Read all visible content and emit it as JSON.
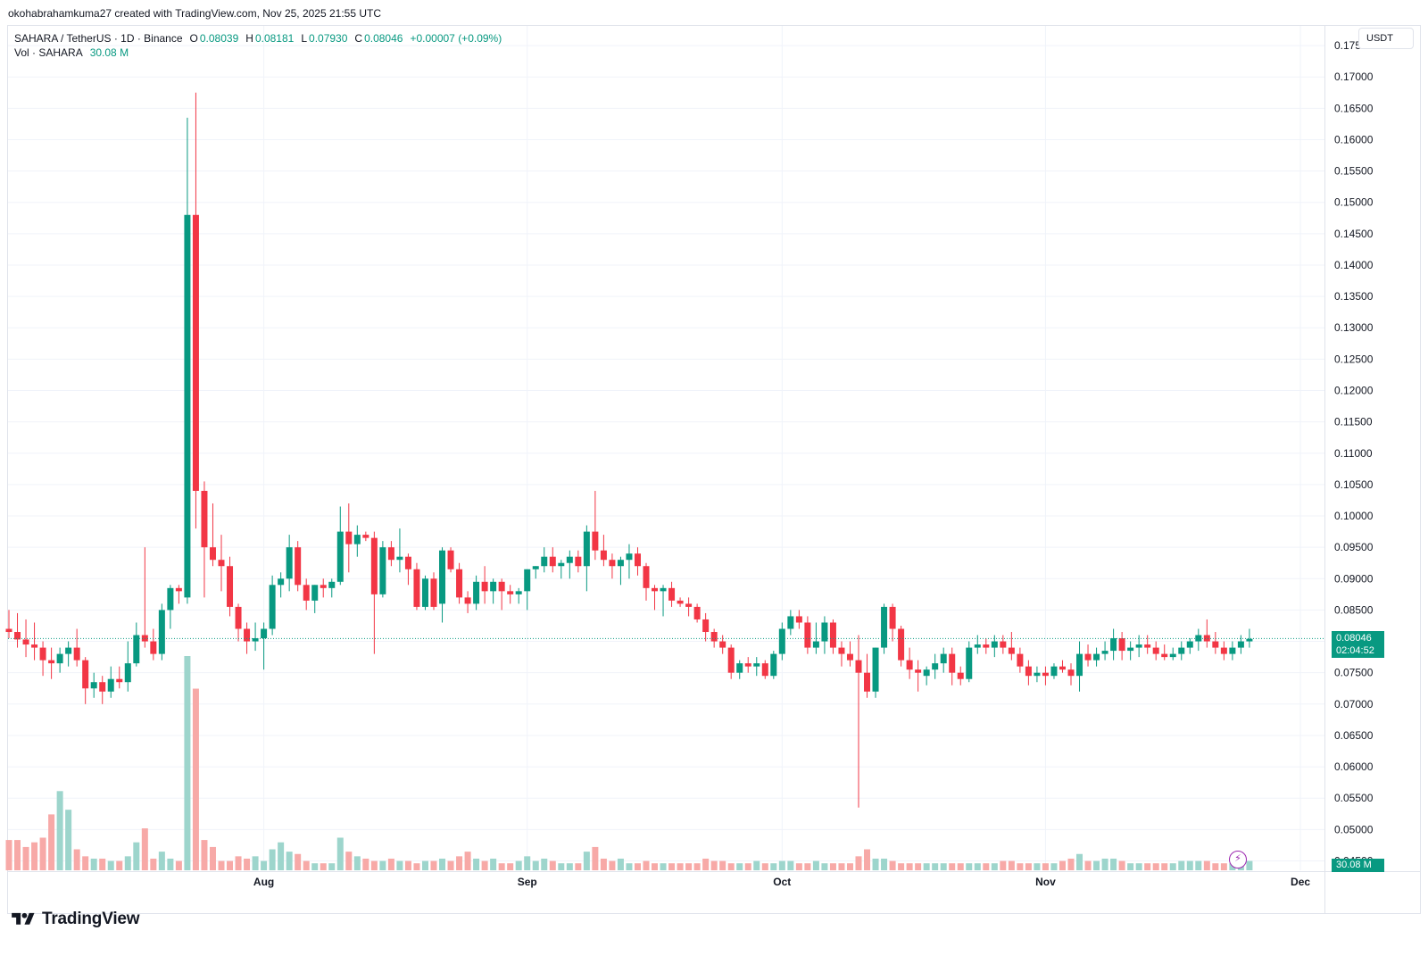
{
  "attribution": "okohabrahamkuma27 created with TradingView.com, Nov 25, 2025 21:55 UTC",
  "legend": {
    "symbol": "SAHARA / TetherUS · 1D · Binance",
    "open_label": "O",
    "open": "0.08039",
    "high_label": "H",
    "high": "0.08181",
    "low_label": "L",
    "low": "0.07930",
    "close_label": "C",
    "close": "0.08046",
    "change": "+0.00007 (+0.09%)",
    "vol_label": "Vol · SAHARA",
    "vol_value": "30.08 M"
  },
  "currency": "USDT",
  "last_price_tag": {
    "price": "0.08046",
    "countdown": "02:04:52"
  },
  "volume_tag": "30.08 M",
  "icons": {
    "flash": "lightning-bolt-icon",
    "brand": "tradingview-logo-icon"
  },
  "brand": "TradingView",
  "colors": {
    "up": "#089981",
    "down": "#f23645",
    "up_volume": "#9dd5cc",
    "down_volume": "#f7a9a7",
    "grid": "#f0f3fa",
    "axis_text": "#131722"
  },
  "chart_data": {
    "type": "candlestick",
    "symbol": "SAHARA / TetherUS",
    "timeframe": "1D",
    "exchange": "Binance",
    "quote_currency": "USDT",
    "ylim": [
      0.0435,
      0.178
    ],
    "y_ticks": [
      "0.17500",
      "0.17000",
      "0.16500",
      "0.16000",
      "0.15500",
      "0.15000",
      "0.14500",
      "0.14000",
      "0.13500",
      "0.13000",
      "0.12500",
      "0.12000",
      "0.11500",
      "0.11000",
      "0.10500",
      "0.10000",
      "0.09500",
      "0.09000",
      "0.08500",
      "0.08000",
      "0.07500",
      "0.07000",
      "0.06500",
      "0.06000",
      "0.05500",
      "0.05000",
      "0.04500"
    ],
    "x_ticks": [
      {
        "label": "Aug",
        "index": 30
      },
      {
        "label": "Sep",
        "index": 61
      },
      {
        "label": "Oct",
        "index": 91
      },
      {
        "label": "Nov",
        "index": 122
      },
      {
        "label": "Dec",
        "index": 152
      }
    ],
    "grid": true,
    "candles_ohlcv": [
      [
        0.082,
        0.085,
        0.0805,
        0.0815,
        13
      ],
      [
        0.0815,
        0.0845,
        0.079,
        0.0803,
        13
      ],
      [
        0.0803,
        0.0835,
        0.0775,
        0.0795,
        10
      ],
      [
        0.0795,
        0.083,
        0.077,
        0.079,
        12
      ],
      [
        0.079,
        0.08,
        0.0745,
        0.077,
        14
      ],
      [
        0.077,
        0.079,
        0.074,
        0.0765,
        24
      ],
      [
        0.0765,
        0.079,
        0.075,
        0.078,
        34
      ],
      [
        0.078,
        0.08,
        0.076,
        0.079,
        26
      ],
      [
        0.079,
        0.082,
        0.076,
        0.077,
        9
      ],
      [
        0.077,
        0.0775,
        0.07,
        0.0725,
        6
      ],
      [
        0.0725,
        0.075,
        0.071,
        0.0735,
        5
      ],
      [
        0.0735,
        0.0745,
        0.07,
        0.072,
        5
      ],
      [
        0.072,
        0.076,
        0.071,
        0.074,
        4
      ],
      [
        0.074,
        0.076,
        0.0725,
        0.0735,
        4
      ],
      [
        0.0735,
        0.08,
        0.072,
        0.0765,
        6
      ],
      [
        0.0765,
        0.083,
        0.076,
        0.081,
        12
      ],
      [
        0.081,
        0.095,
        0.079,
        0.08,
        18
      ],
      [
        0.08,
        0.082,
        0.077,
        0.078,
        5
      ],
      [
        0.078,
        0.086,
        0.077,
        0.085,
        8
      ],
      [
        0.085,
        0.089,
        0.082,
        0.0885,
        5
      ],
      [
        0.0885,
        0.089,
        0.086,
        0.088,
        4
      ],
      [
        0.087,
        0.1635,
        0.086,
        0.148,
        92
      ],
      [
        0.148,
        0.1675,
        0.098,
        0.104,
        78
      ],
      [
        0.104,
        0.1055,
        0.087,
        0.095,
        13
      ],
      [
        0.095,
        0.102,
        0.092,
        0.093,
        10
      ],
      [
        0.093,
        0.097,
        0.088,
        0.092,
        4
      ],
      [
        0.092,
        0.0935,
        0.084,
        0.0855,
        4
      ],
      [
        0.0855,
        0.086,
        0.08,
        0.082,
        6
      ],
      [
        0.082,
        0.083,
        0.078,
        0.08,
        5
      ],
      [
        0.08,
        0.083,
        0.0785,
        0.0805,
        6
      ],
      [
        0.0805,
        0.083,
        0.0755,
        0.082,
        4
      ],
      [
        0.082,
        0.0905,
        0.081,
        0.089,
        9
      ],
      [
        0.089,
        0.091,
        0.087,
        0.09,
        12
      ],
      [
        0.09,
        0.097,
        0.088,
        0.095,
        8
      ],
      [
        0.095,
        0.096,
        0.088,
        0.089,
        7
      ],
      [
        0.089,
        0.09,
        0.085,
        0.0865,
        4
      ],
      [
        0.0865,
        0.089,
        0.0845,
        0.089,
        3
      ],
      [
        0.089,
        0.09,
        0.087,
        0.0885,
        3
      ],
      [
        0.0885,
        0.09,
        0.087,
        0.0895,
        3
      ],
      [
        0.0895,
        0.1015,
        0.089,
        0.0975,
        14
      ],
      [
        0.0975,
        0.102,
        0.091,
        0.0955,
        8
      ],
      [
        0.0955,
        0.0985,
        0.0935,
        0.097,
        6
      ],
      [
        0.097,
        0.0975,
        0.096,
        0.0965,
        5
      ],
      [
        0.0965,
        0.0975,
        0.078,
        0.0875,
        4
      ],
      [
        0.0875,
        0.096,
        0.087,
        0.095,
        4
      ],
      [
        0.095,
        0.096,
        0.092,
        0.093,
        5
      ],
      [
        0.093,
        0.098,
        0.091,
        0.0935,
        4
      ],
      [
        0.0935,
        0.094,
        0.089,
        0.0915,
        4
      ],
      [
        0.0915,
        0.0925,
        0.085,
        0.0855,
        3
      ],
      [
        0.0855,
        0.0905,
        0.085,
        0.09,
        4
      ],
      [
        0.09,
        0.091,
        0.085,
        0.0855,
        4
      ],
      [
        0.086,
        0.095,
        0.083,
        0.0945,
        5
      ],
      [
        0.0945,
        0.095,
        0.091,
        0.0915,
        4
      ],
      [
        0.0915,
        0.0925,
        0.086,
        0.087,
        6
      ],
      [
        0.087,
        0.088,
        0.0845,
        0.086,
        8
      ],
      [
        0.086,
        0.0905,
        0.085,
        0.0895,
        5
      ],
      [
        0.0895,
        0.092,
        0.086,
        0.088,
        4
      ],
      [
        0.088,
        0.09,
        0.086,
        0.0895,
        5
      ],
      [
        0.0895,
        0.09,
        0.085,
        0.088,
        3
      ],
      [
        0.088,
        0.089,
        0.086,
        0.0875,
        3
      ],
      [
        0.0875,
        0.0885,
        0.086,
        0.088,
        4
      ],
      [
        0.088,
        0.0915,
        0.085,
        0.0915,
        6
      ],
      [
        0.0915,
        0.092,
        0.09,
        0.092,
        4
      ],
      [
        0.092,
        0.095,
        0.091,
        0.0935,
        5
      ],
      [
        0.0935,
        0.095,
        0.091,
        0.092,
        4
      ],
      [
        0.092,
        0.093,
        0.09,
        0.0925,
        3
      ],
      [
        0.0925,
        0.0945,
        0.09,
        0.0935,
        3
      ],
      [
        0.0935,
        0.0945,
        0.091,
        0.092,
        3
      ],
      [
        0.092,
        0.0985,
        0.088,
        0.0975,
        8
      ],
      [
        0.0975,
        0.104,
        0.093,
        0.0945,
        10
      ],
      [
        0.0945,
        0.097,
        0.092,
        0.093,
        5
      ],
      [
        0.093,
        0.094,
        0.09,
        0.092,
        4
      ],
      [
        0.092,
        0.0935,
        0.089,
        0.093,
        5
      ],
      [
        0.093,
        0.0955,
        0.09,
        0.094,
        3
      ],
      [
        0.094,
        0.095,
        0.0905,
        0.092,
        3
      ],
      [
        0.092,
        0.0925,
        0.0865,
        0.0885,
        4
      ],
      [
        0.0885,
        0.089,
        0.085,
        0.088,
        3
      ],
      [
        0.088,
        0.089,
        0.084,
        0.0885,
        3
      ],
      [
        0.0885,
        0.0895,
        0.0855,
        0.0865,
        3
      ],
      [
        0.0865,
        0.087,
        0.0855,
        0.086,
        3
      ],
      [
        0.086,
        0.087,
        0.084,
        0.0855,
        3
      ],
      [
        0.0855,
        0.086,
        0.083,
        0.0835,
        3
      ],
      [
        0.0835,
        0.0845,
        0.08,
        0.0815,
        5
      ],
      [
        0.0815,
        0.082,
        0.079,
        0.08,
        4
      ],
      [
        0.08,
        0.081,
        0.078,
        0.079,
        4
      ],
      [
        0.079,
        0.0795,
        0.074,
        0.075,
        3
      ],
      [
        0.075,
        0.077,
        0.074,
        0.0765,
        3
      ],
      [
        0.0765,
        0.0775,
        0.075,
        0.076,
        3
      ],
      [
        0.076,
        0.0775,
        0.0745,
        0.0765,
        4
      ],
      [
        0.0765,
        0.077,
        0.074,
        0.0745,
        3
      ],
      [
        0.0745,
        0.0785,
        0.074,
        0.078,
        3
      ],
      [
        0.078,
        0.083,
        0.077,
        0.082,
        4
      ],
      [
        0.082,
        0.085,
        0.081,
        0.084,
        4
      ],
      [
        0.084,
        0.085,
        0.082,
        0.083,
        3
      ],
      [
        0.083,
        0.084,
        0.078,
        0.079,
        3
      ],
      [
        0.079,
        0.083,
        0.078,
        0.08,
        4
      ],
      [
        0.08,
        0.084,
        0.078,
        0.083,
        3
      ],
      [
        0.083,
        0.0835,
        0.078,
        0.079,
        3
      ],
      [
        0.079,
        0.08,
        0.076,
        0.078,
        3
      ],
      [
        0.078,
        0.08,
        0.076,
        0.077,
        3
      ],
      [
        0.077,
        0.081,
        0.0535,
        0.075,
        6
      ],
      [
        0.075,
        0.078,
        0.071,
        0.072,
        9
      ],
      [
        0.072,
        0.079,
        0.071,
        0.079,
        5
      ],
      [
        0.079,
        0.086,
        0.078,
        0.0855,
        5
      ],
      [
        0.0855,
        0.086,
        0.08,
        0.082,
        4
      ],
      [
        0.082,
        0.0825,
        0.076,
        0.077,
        3
      ],
      [
        0.077,
        0.079,
        0.074,
        0.0755,
        3
      ],
      [
        0.0755,
        0.077,
        0.072,
        0.075,
        3
      ],
      [
        0.0745,
        0.076,
        0.073,
        0.0755,
        3
      ],
      [
        0.0755,
        0.078,
        0.074,
        0.0765,
        3
      ],
      [
        0.0765,
        0.079,
        0.075,
        0.078,
        3
      ],
      [
        0.078,
        0.079,
        0.073,
        0.075,
        3
      ],
      [
        0.075,
        0.076,
        0.073,
        0.074,
        3
      ],
      [
        0.074,
        0.08,
        0.0735,
        0.079,
        3
      ],
      [
        0.079,
        0.081,
        0.078,
        0.0795,
        3
      ],
      [
        0.0795,
        0.0805,
        0.078,
        0.079,
        3
      ],
      [
        0.079,
        0.081,
        0.0775,
        0.08,
        3
      ],
      [
        0.08,
        0.081,
        0.078,
        0.079,
        4
      ],
      [
        0.079,
        0.0815,
        0.077,
        0.078,
        4
      ],
      [
        0.078,
        0.079,
        0.075,
        0.076,
        3
      ],
      [
        0.076,
        0.077,
        0.073,
        0.0745,
        3
      ],
      [
        0.0745,
        0.076,
        0.0735,
        0.075,
        3
      ],
      [
        0.075,
        0.076,
        0.073,
        0.0745,
        3
      ],
      [
        0.0745,
        0.0765,
        0.074,
        0.076,
        3
      ],
      [
        0.076,
        0.077,
        0.075,
        0.0755,
        4
      ],
      [
        0.0755,
        0.0765,
        0.073,
        0.0745,
        5
      ],
      [
        0.0745,
        0.08,
        0.072,
        0.078,
        7
      ],
      [
        0.078,
        0.0795,
        0.076,
        0.077,
        4
      ],
      [
        0.077,
        0.079,
        0.076,
        0.078,
        4
      ],
      [
        0.078,
        0.08,
        0.077,
        0.0785,
        5
      ],
      [
        0.0785,
        0.082,
        0.077,
        0.0805,
        5
      ],
      [
        0.0805,
        0.0815,
        0.077,
        0.0785,
        4
      ],
      [
        0.0785,
        0.08,
        0.077,
        0.079,
        3
      ],
      [
        0.079,
        0.081,
        0.0775,
        0.0795,
        3
      ],
      [
        0.0795,
        0.081,
        0.078,
        0.079,
        3
      ],
      [
        0.079,
        0.08,
        0.077,
        0.078,
        3
      ],
      [
        0.078,
        0.0795,
        0.077,
        0.0775,
        3
      ],
      [
        0.0775,
        0.079,
        0.077,
        0.078,
        3
      ],
      [
        0.078,
        0.08,
        0.077,
        0.079,
        4
      ],
      [
        0.079,
        0.0805,
        0.078,
        0.08,
        4
      ],
      [
        0.08,
        0.082,
        0.0785,
        0.081,
        4
      ],
      [
        0.081,
        0.0835,
        0.079,
        0.08,
        4
      ],
      [
        0.08,
        0.0815,
        0.078,
        0.079,
        3
      ],
      [
        0.079,
        0.08,
        0.077,
        0.078,
        3
      ],
      [
        0.078,
        0.08,
        0.077,
        0.079,
        3
      ],
      [
        0.079,
        0.081,
        0.078,
        0.08,
        4
      ],
      [
        0.08,
        0.082,
        0.079,
        0.0804,
        4
      ]
    ]
  }
}
